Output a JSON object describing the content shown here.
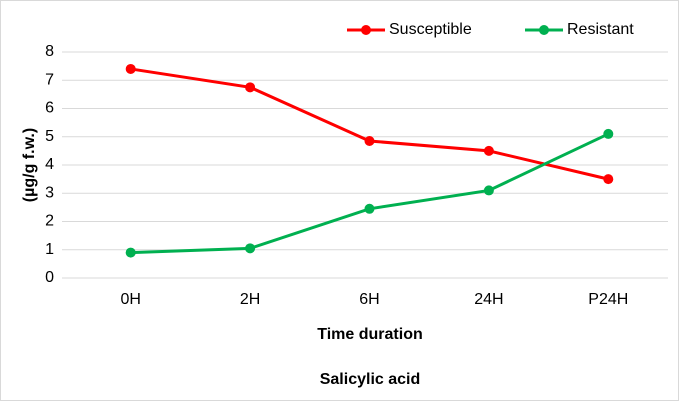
{
  "chart_data": {
    "type": "line",
    "title": "Salicylic acid",
    "x_label": "Time duration",
    "y_label": "(µg/g f.w.)",
    "categories": [
      "0H",
      "2H",
      "6H",
      "24H",
      "P24H"
    ],
    "series": [
      {
        "name": "Susceptible",
        "color": "#ff0000",
        "values": [
          7.4,
          6.75,
          4.85,
          4.5,
          3.5
        ]
      },
      {
        "name": "Resistant",
        "color": "#00b050",
        "values": [
          0.9,
          1.05,
          2.45,
          3.1,
          5.1
        ]
      }
    ],
    "ylim": [
      0,
      8
    ],
    "yticks": [
      0,
      1,
      2,
      3,
      4,
      5,
      6,
      7,
      8
    ],
    "grid": true,
    "legend": "top-right"
  }
}
